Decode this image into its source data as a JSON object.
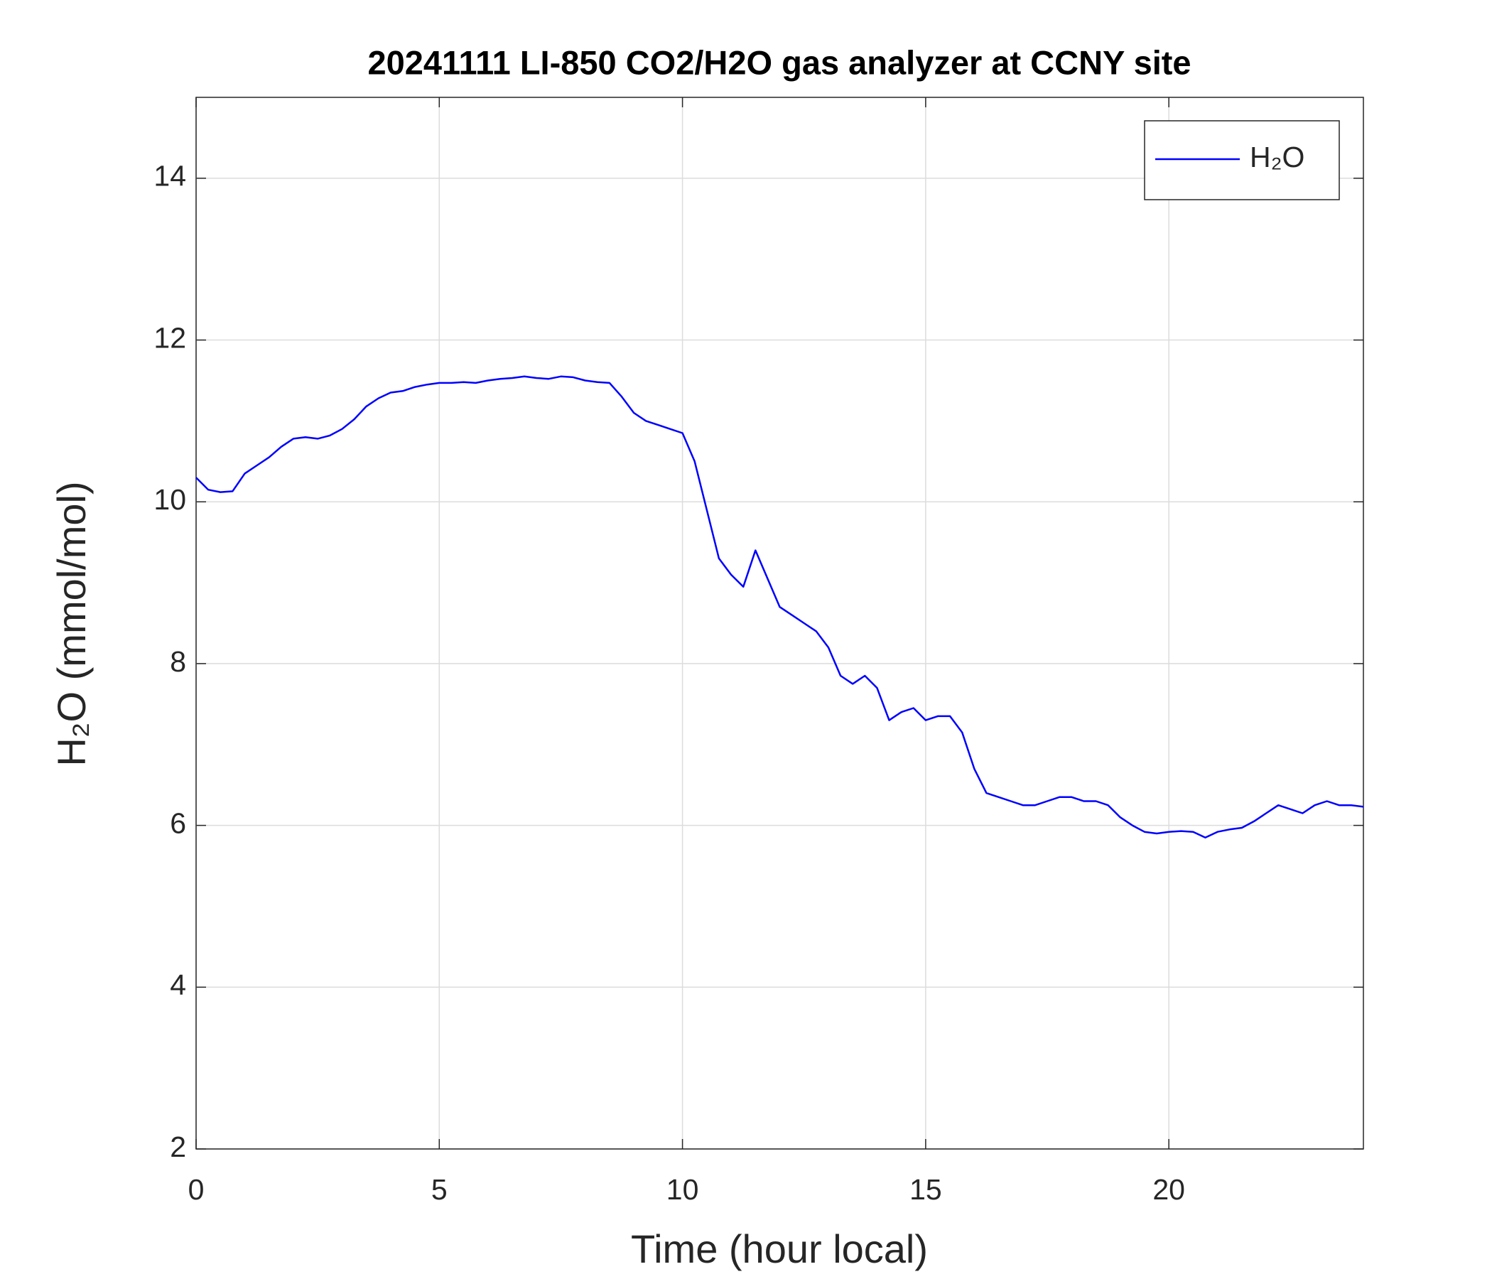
{
  "chart_data": {
    "type": "line",
    "title": "20241111 LI-850 CO2/H2O gas analyzer at CCNY site",
    "x_label": "Time (hour local)",
    "y_label": "H₂O (mmol/mol)",
    "x": [
      0,
      0.25,
      0.5,
      0.75,
      1,
      1.25,
      1.5,
      1.75,
      2,
      2.25,
      2.5,
      2.75,
      3,
      3.25,
      3.5,
      3.75,
      4,
      4.25,
      4.5,
      4.75,
      5,
      5.25,
      5.5,
      5.75,
      6,
      6.25,
      6.5,
      6.75,
      7,
      7.25,
      7.5,
      7.75,
      8,
      8.25,
      8.5,
      8.75,
      9,
      9.25,
      9.5,
      9.75,
      10,
      10.25,
      10.5,
      10.75,
      11,
      11.25,
      11.5,
      11.75,
      12,
      12.25,
      12.5,
      12.75,
      13,
      13.25,
      13.5,
      13.75,
      14,
      14.25,
      14.5,
      14.75,
      15,
      15.25,
      15.5,
      15.75,
      16,
      16.25,
      16.5,
      16.75,
      17,
      17.25,
      17.5,
      17.75,
      18,
      18.25,
      18.5,
      18.75,
      19,
      19.25,
      19.5,
      19.75,
      20,
      20.25,
      20.5,
      20.75,
      21,
      21.25,
      21.5,
      21.75,
      22,
      22.25,
      22.5,
      22.75,
      23,
      23.25,
      23.5,
      23.75,
      24
    ],
    "series": [
      {
        "name": "H₂O",
        "color": "#0000ff",
        "values": [
          10.3,
          10.15,
          10.12,
          10.13,
          10.35,
          10.45,
          10.55,
          10.68,
          10.78,
          10.8,
          10.78,
          10.82,
          10.9,
          11.02,
          11.18,
          11.28,
          11.35,
          11.37,
          11.42,
          11.45,
          11.47,
          11.47,
          11.48,
          11.47,
          11.5,
          11.52,
          11.53,
          11.55,
          11.53,
          11.52,
          11.55,
          11.54,
          11.5,
          11.48,
          11.47,
          11.3,
          11.1,
          11.0,
          10.95,
          10.9,
          10.85,
          10.5,
          9.9,
          9.3,
          9.1,
          8.95,
          9.4,
          9.05,
          8.7,
          8.6,
          8.5,
          8.4,
          8.2,
          7.85,
          7.75,
          7.85,
          7.7,
          7.3,
          7.4,
          7.45,
          7.3,
          7.35,
          7.35,
          7.15,
          6.7,
          6.4,
          6.35,
          6.3,
          6.25,
          6.25,
          6.3,
          6.35,
          6.35,
          6.3,
          6.3,
          6.25,
          6.1,
          6.0,
          5.92,
          5.9,
          5.92,
          5.93,
          5.92,
          5.85,
          5.92,
          5.95,
          5.97,
          6.05,
          6.15,
          6.25,
          6.2,
          6.15,
          6.25,
          6.3,
          6.25,
          6.25,
          6.23
        ]
      }
    ],
    "xlim": [
      0,
      24
    ],
    "xticks": [
      0,
      5,
      10,
      15,
      20
    ],
    "ylim": [
      2,
      15
    ],
    "yticks": [
      2,
      4,
      6,
      8,
      10,
      12,
      14
    ],
    "grid": true,
    "legend": "top-right"
  }
}
